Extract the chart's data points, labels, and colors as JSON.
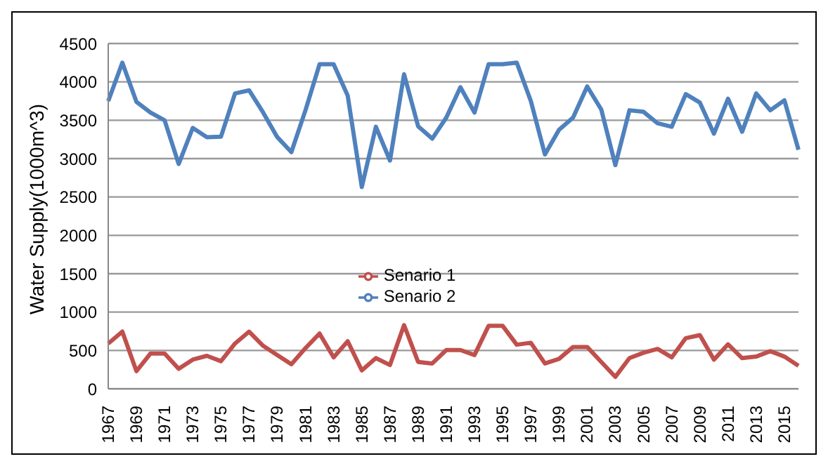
{
  "chart_data": {
    "type": "line",
    "ylabel": "Water Supply(1000m^3)",
    "categories": [
      "1967",
      null,
      "1969",
      null,
      "1971",
      null,
      "1973",
      null,
      "1975",
      null,
      "1977",
      null,
      "1979",
      null,
      "1981",
      null,
      "1983",
      null,
      "1985",
      null,
      "1987",
      null,
      "1989",
      null,
      "1991",
      null,
      "1993",
      null,
      "1995",
      null,
      "1997",
      null,
      "1999",
      null,
      "2001",
      null,
      "2003",
      null,
      "2005",
      null,
      "2007",
      null,
      "2009",
      null,
      "2011",
      null,
      "2013",
      null,
      "2015",
      null
    ],
    "series": [
      {
        "name": "Senario 1",
        "color": "#c0504d",
        "values": [
          590,
          745,
          230,
          460,
          460,
          260,
          380,
          430,
          360,
          590,
          745,
          560,
          440,
          320,
          530,
          720,
          410,
          620,
          240,
          400,
          310,
          830,
          350,
          330,
          505,
          505,
          440,
          820,
          820,
          575,
          600,
          330,
          390,
          545,
          545,
          350,
          155,
          400,
          470,
          520,
          410,
          660,
          700,
          380,
          580,
          400,
          420,
          490,
          420,
          300
        ]
      },
      {
        "name": "Senario 2",
        "color": "#4f81bd",
        "values": [
          3750,
          4250,
          3740,
          3600,
          3500,
          2930,
          3400,
          3280,
          3285,
          3850,
          3890,
          3600,
          3280,
          3085,
          3630,
          4230,
          4230,
          3820,
          2630,
          3415,
          2975,
          4100,
          3420,
          3260,
          3535,
          3930,
          3600,
          4230,
          4230,
          4250,
          3750,
          3055,
          3375,
          3535,
          3940,
          3640,
          2915,
          3630,
          3610,
          3460,
          3415,
          3840,
          3730,
          3325,
          3780,
          3350,
          3850,
          3630,
          3760,
          3115
        ]
      }
    ],
    "ylim": [
      0,
      4500
    ],
    "yticks": [
      0,
      500,
      1000,
      1500,
      2000,
      2500,
      3000,
      3500,
      4000,
      4500
    ],
    "grid": "y",
    "legend": "center",
    "marker": "none",
    "line_style": "solid"
  }
}
